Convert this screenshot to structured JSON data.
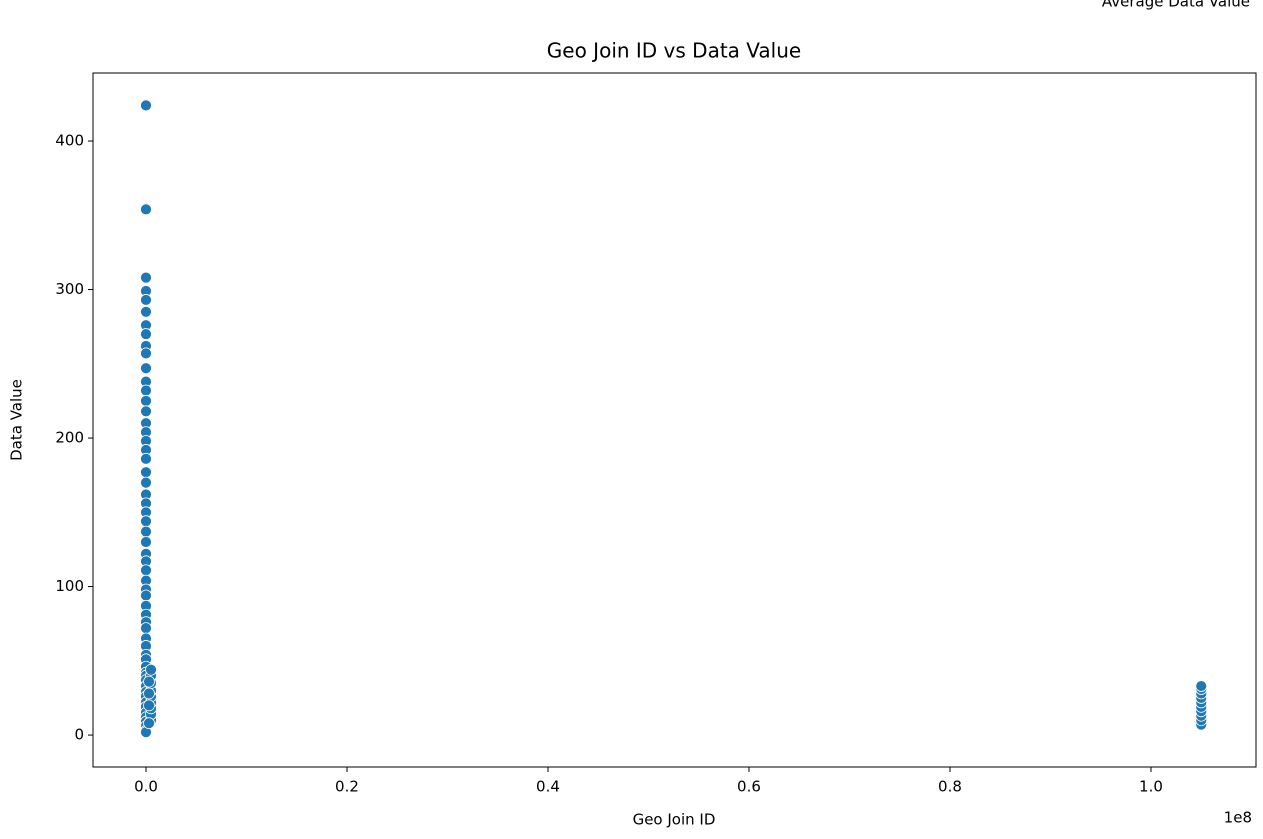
{
  "chart_data": {
    "type": "scatter",
    "title": "Geo Join ID vs Data Value",
    "x_label": "Geo Join ID",
    "y_label": "Data Value",
    "x_offset_label": "1e8",
    "annotation": "Average Data Value",
    "color": "#1f77b4",
    "x": [
      101,
      102,
      103,
      104,
      105,
      106,
      107,
      201,
      202,
      203,
      204,
      205,
      206,
      207,
      208,
      209,
      210,
      211,
      301,
      302,
      303,
      304,
      305,
      306,
      307,
      308,
      309,
      310,
      311,
      312,
      401,
      402,
      403,
      404,
      405,
      406,
      407,
      408,
      409,
      410,
      411,
      412,
      501,
      502,
      503,
      504,
      505,
      506,
      507,
      508,
      509,
      510,
      511,
      512,
      513,
      514,
      515,
      500000,
      500000,
      500000,
      500000,
      500000,
      500000,
      500000,
      500000,
      500000,
      300000,
      300000,
      300000,
      300000,
      105000000,
      105000000,
      105000000,
      105000000,
      105000000,
      105000000,
      105000000,
      105000000,
      105000000,
      105000000
    ],
    "values": [
      424,
      354,
      308,
      299,
      293,
      285,
      276,
      270,
      262,
      257,
      247,
      238,
      232,
      225,
      218,
      210,
      204,
      198,
      192,
      186,
      177,
      170,
      162,
      156,
      150,
      144,
      137,
      130,
      122,
      117,
      111,
      104,
      98,
      94,
      87,
      81,
      76,
      72,
      65,
      60,
      54,
      51,
      46,
      42,
      40,
      37,
      33,
      29,
      26,
      22,
      19,
      15,
      12,
      9,
      6,
      3,
      2,
      10,
      14,
      18,
      22,
      26,
      30,
      35,
      40,
      44,
      8,
      20,
      28,
      36,
      7,
      10,
      13,
      16,
      19,
      22,
      25,
      28,
      31,
      33
    ],
    "xlim": [
      -5273000,
      110450000
    ],
    "xticks": [
      {
        "value": 0,
        "label": "0.0"
      },
      {
        "value": 20000000,
        "label": "0.2"
      },
      {
        "value": 40000000,
        "label": "0.4"
      },
      {
        "value": 60000000,
        "label": "0.6"
      },
      {
        "value": 80000000,
        "label": "0.8"
      },
      {
        "value": 100000000,
        "label": "1.0"
      }
    ],
    "ylim": [
      -21.5,
      445.8
    ],
    "yticks": [
      0,
      100,
      200,
      300,
      400
    ]
  }
}
